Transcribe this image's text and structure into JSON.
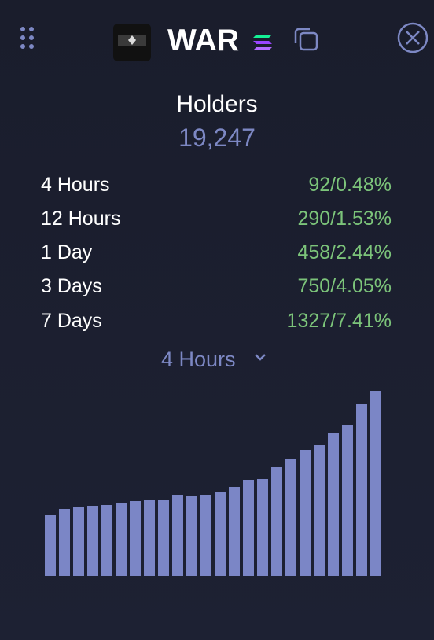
{
  "header": {
    "token": "WAR"
  },
  "holders": {
    "label": "Holders",
    "count": "19,247"
  },
  "rows": [
    {
      "label": "4 Hours",
      "value": "92/0.48%"
    },
    {
      "label": "12 Hours",
      "value": "290/1.53%"
    },
    {
      "label": "1 Day",
      "value": "458/2.44%"
    },
    {
      "label": "3 Days",
      "value": "750/4.05%"
    },
    {
      "label": "7 Days",
      "value": "1327/7.41%"
    }
  ],
  "selector": "4 Hours",
  "chart_data": {
    "type": "bar",
    "color": "#7b86c6",
    "values": [
      78,
      86,
      88,
      90,
      91,
      93,
      96,
      97,
      97,
      104,
      102,
      104,
      107,
      114,
      123,
      124,
      139,
      149,
      161,
      167,
      182,
      192,
      219,
      236
    ]
  }
}
